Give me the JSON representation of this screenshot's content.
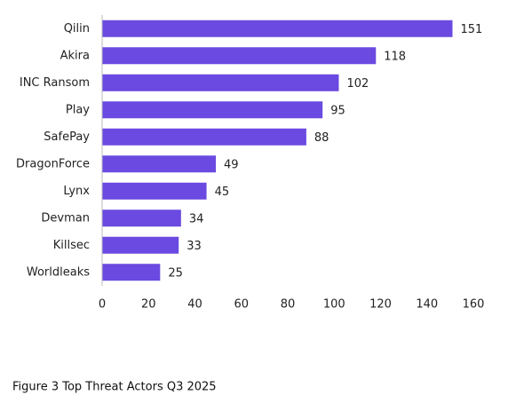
{
  "chart_data": {
    "type": "bar",
    "orientation": "horizontal",
    "caption": "Figure 3 Top Threat Actors Q3 2025",
    "categories": [
      "Qilin",
      "Akira",
      "INC Ransom",
      "Play",
      "SafePay",
      "DragonForce",
      "Lynx",
      "Devman",
      "Killsec",
      "Worldleaks"
    ],
    "values": [
      151,
      118,
      102,
      95,
      88,
      49,
      45,
      34,
      33,
      25
    ],
    "color": "#6a4ae0",
    "xlim": [
      0,
      160
    ],
    "xticks": [
      0,
      20,
      40,
      60,
      80,
      100,
      120,
      140,
      160
    ],
    "grid": false
  }
}
